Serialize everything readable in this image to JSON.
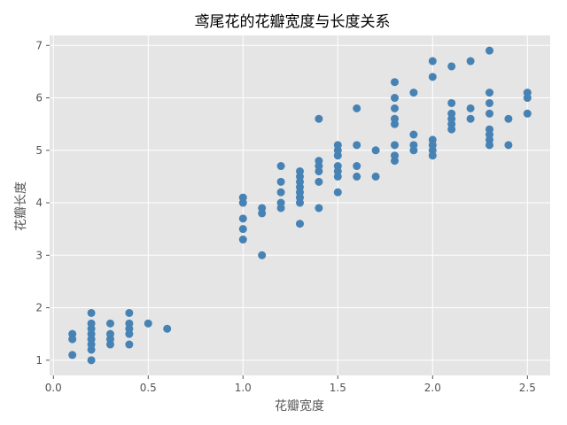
{
  "chart_data": {
    "type": "scatter",
    "title": "鸢尾花的花瓣宽度与长度关系",
    "xlabel": "花瓣宽度",
    "ylabel": "花瓣长度",
    "xlim": [
      -0.02,
      2.62
    ],
    "ylim": [
      0.71,
      7.19
    ],
    "xticks": [
      0.0,
      0.5,
      1.0,
      1.5,
      2.0,
      2.5
    ],
    "xtick_labels": [
      "0.0",
      "0.5",
      "1.0",
      "1.5",
      "2.0",
      "2.5"
    ],
    "yticks": [
      1,
      2,
      3,
      4,
      5,
      6,
      7
    ],
    "ytick_labels": [
      "1",
      "2",
      "3",
      "4",
      "5",
      "6",
      "7"
    ],
    "grid": true,
    "style": "ggplot",
    "point_color": "#4682B4",
    "points": [
      [
        0.1,
        1.1
      ],
      [
        0.1,
        1.4
      ],
      [
        0.1,
        1.5
      ],
      [
        0.2,
        1.0
      ],
      [
        0.2,
        1.2
      ],
      [
        0.2,
        1.3
      ],
      [
        0.2,
        1.4
      ],
      [
        0.2,
        1.5
      ],
      [
        0.2,
        1.6
      ],
      [
        0.2,
        1.7
      ],
      [
        0.2,
        1.9
      ],
      [
        0.3,
        1.3
      ],
      [
        0.3,
        1.4
      ],
      [
        0.3,
        1.5
      ],
      [
        0.3,
        1.7
      ],
      [
        0.4,
        1.3
      ],
      [
        0.4,
        1.5
      ],
      [
        0.4,
        1.6
      ],
      [
        0.4,
        1.7
      ],
      [
        0.4,
        1.9
      ],
      [
        0.5,
        1.7
      ],
      [
        0.6,
        1.6
      ],
      [
        1.0,
        3.3
      ],
      [
        1.0,
        3.5
      ],
      [
        1.0,
        3.7
      ],
      [
        1.0,
        4.0
      ],
      [
        1.0,
        4.1
      ],
      [
        1.1,
        3.0
      ],
      [
        1.1,
        3.8
      ],
      [
        1.1,
        3.9
      ],
      [
        1.2,
        3.9
      ],
      [
        1.2,
        4.0
      ],
      [
        1.2,
        4.2
      ],
      [
        1.2,
        4.4
      ],
      [
        1.2,
        4.7
      ],
      [
        1.3,
        3.6
      ],
      [
        1.3,
        4.0
      ],
      [
        1.3,
        4.1
      ],
      [
        1.3,
        4.2
      ],
      [
        1.3,
        4.3
      ],
      [
        1.3,
        4.4
      ],
      [
        1.3,
        4.5
      ],
      [
        1.3,
        4.6
      ],
      [
        1.4,
        3.9
      ],
      [
        1.4,
        4.4
      ],
      [
        1.4,
        4.6
      ],
      [
        1.4,
        4.7
      ],
      [
        1.4,
        4.8
      ],
      [
        1.4,
        5.6
      ],
      [
        1.5,
        4.2
      ],
      [
        1.5,
        4.5
      ],
      [
        1.5,
        4.6
      ],
      [
        1.5,
        4.7
      ],
      [
        1.5,
        4.9
      ],
      [
        1.5,
        5.0
      ],
      [
        1.5,
        5.1
      ],
      [
        1.6,
        4.5
      ],
      [
        1.6,
        4.7
      ],
      [
        1.6,
        5.1
      ],
      [
        1.6,
        5.8
      ],
      [
        1.7,
        4.5
      ],
      [
        1.7,
        5.0
      ],
      [
        1.8,
        4.8
      ],
      [
        1.8,
        4.9
      ],
      [
        1.8,
        5.1
      ],
      [
        1.8,
        5.5
      ],
      [
        1.8,
        5.6
      ],
      [
        1.8,
        5.8
      ],
      [
        1.8,
        6.0
      ],
      [
        1.8,
        6.3
      ],
      [
        1.9,
        5.0
      ],
      [
        1.9,
        5.1
      ],
      [
        1.9,
        5.3
      ],
      [
        1.9,
        6.1
      ],
      [
        2.0,
        4.9
      ],
      [
        2.0,
        5.0
      ],
      [
        2.0,
        5.1
      ],
      [
        2.0,
        5.2
      ],
      [
        2.0,
        6.4
      ],
      [
        2.0,
        6.7
      ],
      [
        2.1,
        5.4
      ],
      [
        2.1,
        5.5
      ],
      [
        2.1,
        5.6
      ],
      [
        2.1,
        5.7
      ],
      [
        2.1,
        5.9
      ],
      [
        2.1,
        6.6
      ],
      [
        2.2,
        5.6
      ],
      [
        2.2,
        5.8
      ],
      [
        2.2,
        6.7
      ],
      [
        2.3,
        5.1
      ],
      [
        2.3,
        5.2
      ],
      [
        2.3,
        5.3
      ],
      [
        2.3,
        5.4
      ],
      [
        2.3,
        5.7
      ],
      [
        2.3,
        5.9
      ],
      [
        2.3,
        6.1
      ],
      [
        2.3,
        6.9
      ],
      [
        2.4,
        5.1
      ],
      [
        2.4,
        5.6
      ],
      [
        2.5,
        5.7
      ],
      [
        2.5,
        6.0
      ],
      [
        2.5,
        6.1
      ]
    ]
  }
}
